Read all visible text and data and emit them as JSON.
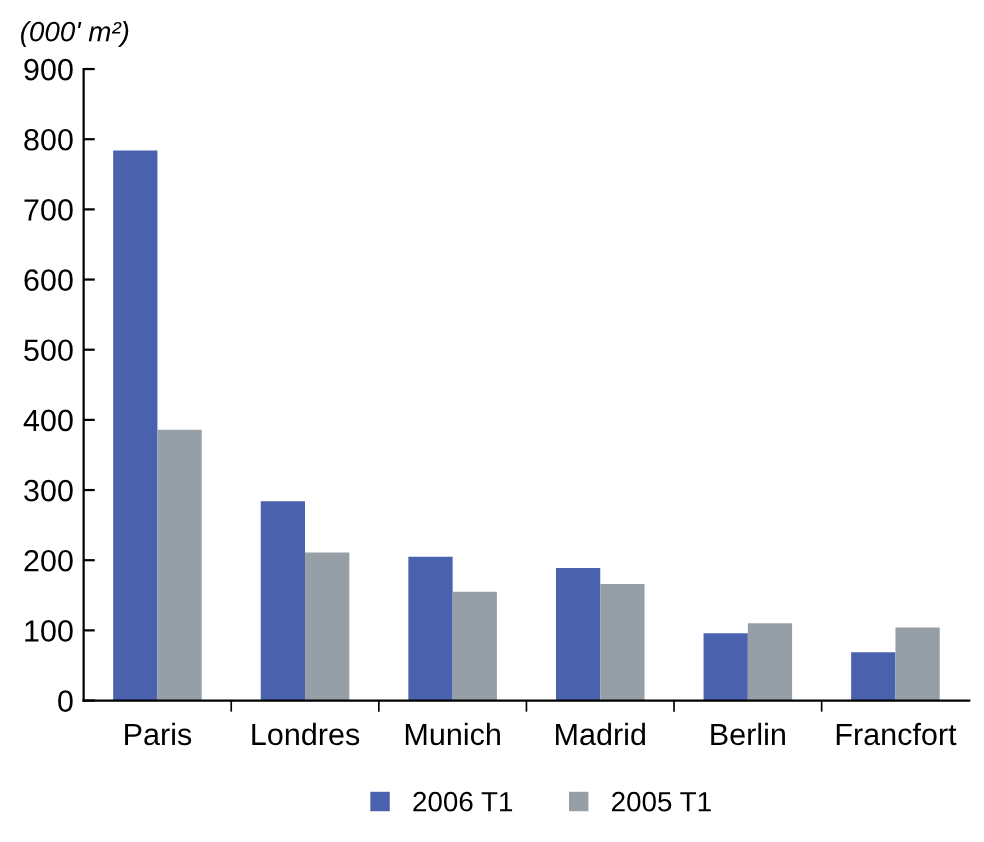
{
  "chart_data": {
    "type": "bar",
    "ylabel": "(000' m²)",
    "categories": [
      "Paris",
      "Londres",
      "Munich",
      "Madrid",
      "Berlin",
      "Francfort"
    ],
    "series": [
      {
        "name": "2006 T1",
        "color": "#4a62ae",
        "values": [
          784,
          284,
          205,
          189,
          96,
          69
        ]
      },
      {
        "name": "2005 T1",
        "color": "#979fa6",
        "values": [
          386,
          211,
          155,
          166,
          110,
          104
        ]
      }
    ],
    "ylim": [
      0,
      900
    ],
    "yticks": [
      0,
      100,
      200,
      300,
      400,
      500,
      600,
      700,
      800,
      900
    ],
    "grid": false,
    "legend": "bottom"
  }
}
